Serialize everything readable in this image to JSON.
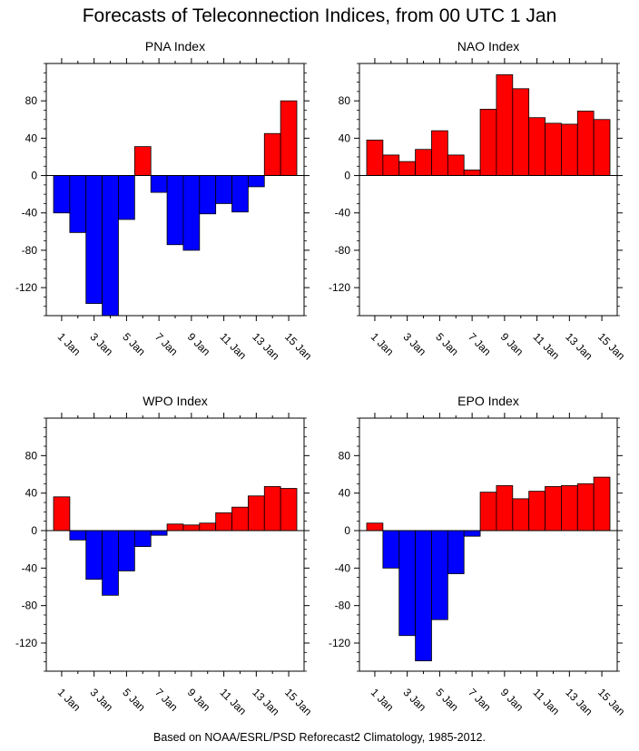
{
  "title": "Forecasts of Teleconnection Indices, from 00 UTC 1 Jan",
  "footer": "Based on NOAA/ESRL/PSD Reforecast2 Climatology, 1985-2012.",
  "colors": {
    "positive": "#ff0000",
    "negative": "#0000ff",
    "outline": "#000000"
  },
  "chart_data": [
    {
      "type": "bar",
      "title": "PNA Index",
      "categories": [
        "1 Jan",
        "2 Jan",
        "3 Jan",
        "4 Jan",
        "5 Jan",
        "6 Jan",
        "7 Jan",
        "8 Jan",
        "9 Jan",
        "10 Jan",
        "11 Jan",
        "12 Jan",
        "13 Jan",
        "14 Jan",
        "15 Jan"
      ],
      "tick_labels": [
        "1 Jan",
        "3 Jan",
        "5 Jan",
        "7 Jan",
        "9 Jan",
        "11 Jan",
        "13 Jan",
        "15 Jan"
      ],
      "values": [
        -40,
        -61,
        -137,
        -150,
        -47,
        31,
        -18,
        -74,
        -80,
        -41,
        -30,
        -39,
        -12,
        45,
        80
      ],
      "ylim": [
        -150,
        120
      ],
      "yticks": [
        -120,
        -80,
        -40,
        0,
        40,
        80
      ]
    },
    {
      "type": "bar",
      "title": "NAO Index",
      "categories": [
        "1 Jan",
        "2 Jan",
        "3 Jan",
        "4 Jan",
        "5 Jan",
        "6 Jan",
        "7 Jan",
        "8 Jan",
        "9 Jan",
        "10 Jan",
        "11 Jan",
        "12 Jan",
        "13 Jan",
        "14 Jan",
        "15 Jan"
      ],
      "tick_labels": [
        "1 Jan",
        "3 Jan",
        "5 Jan",
        "7 Jan",
        "9 Jan",
        "11 Jan",
        "13 Jan",
        "15 Jan"
      ],
      "values": [
        38,
        22,
        15,
        28,
        48,
        22,
        6,
        71,
        108,
        93,
        62,
        56,
        55,
        69,
        60
      ],
      "ylim": [
        -150,
        120
      ],
      "yticks": [
        -120,
        -80,
        -40,
        0,
        40,
        80
      ]
    },
    {
      "type": "bar",
      "title": "WPO Index",
      "categories": [
        "1 Jan",
        "2 Jan",
        "3 Jan",
        "4 Jan",
        "5 Jan",
        "6 Jan",
        "7 Jan",
        "8 Jan",
        "9 Jan",
        "10 Jan",
        "11 Jan",
        "12 Jan",
        "13 Jan",
        "14 Jan",
        "15 Jan"
      ],
      "tick_labels": [
        "1 Jan",
        "3 Jan",
        "5 Jan",
        "7 Jan",
        "9 Jan",
        "11 Jan",
        "13 Jan",
        "15 Jan"
      ],
      "values": [
        36,
        -10,
        -52,
        -69,
        -43,
        -17,
        -5,
        7,
        6,
        8,
        19,
        25,
        37,
        47,
        45
      ],
      "ylim": [
        -150,
        120
      ],
      "yticks": [
        -120,
        -80,
        -40,
        0,
        40,
        80
      ]
    },
    {
      "type": "bar",
      "title": "EPO Index",
      "categories": [
        "1 Jan",
        "2 Jan",
        "3 Jan",
        "4 Jan",
        "5 Jan",
        "6 Jan",
        "7 Jan",
        "8 Jan",
        "9 Jan",
        "10 Jan",
        "11 Jan",
        "12 Jan",
        "13 Jan",
        "14 Jan",
        "15 Jan"
      ],
      "tick_labels": [
        "1 Jan",
        "3 Jan",
        "5 Jan",
        "7 Jan",
        "9 Jan",
        "11 Jan",
        "13 Jan",
        "15 Jan"
      ],
      "values": [
        8,
        -40,
        -112,
        -139,
        -95,
        -46,
        -6,
        41,
        48,
        34,
        42,
        47,
        48,
        50,
        57
      ],
      "ylim": [
        -150,
        120
      ],
      "yticks": [
        -120,
        -80,
        -40,
        0,
        40,
        80
      ]
    }
  ]
}
